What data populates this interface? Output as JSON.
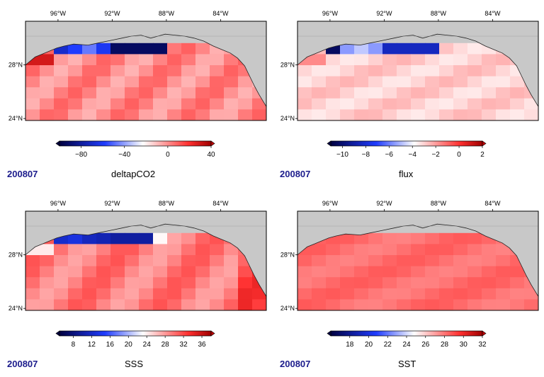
{
  "panels": [
    {
      "id": "deltapco2",
      "date": "200807",
      "variable": "deltapCO2",
      "colorbar": {
        "min": -100,
        "max": 40,
        "ticks": [
          -80,
          -40,
          0,
          40
        ]
      },
      "lon_ticks": [
        "96°W",
        "92°W",
        "88°W",
        "84°W"
      ],
      "lat_ticks": [
        "28°N",
        "24°N"
      ]
    },
    {
      "id": "flux",
      "date": "200807",
      "variable": "flux",
      "colorbar": {
        "min": -11,
        "max": 2,
        "ticks": [
          -10,
          -8,
          -6,
          -4,
          -2,
          0,
          2
        ]
      },
      "lon_ticks": [
        "96°W",
        "92°W",
        "88°W",
        "84°W"
      ],
      "lat_ticks": [
        "28°N",
        "24°N"
      ]
    },
    {
      "id": "sss",
      "date": "200807",
      "variable": "SSS",
      "colorbar": {
        "min": 5,
        "max": 38,
        "ticks": [
          8,
          12,
          16,
          20,
          24,
          28,
          32,
          36
        ]
      },
      "lon_ticks": [
        "96°W",
        "92°W",
        "88°W",
        "84°W"
      ],
      "lat_ticks": [
        "28°N",
        "24°N"
      ]
    },
    {
      "id": "sst",
      "date": "200807",
      "variable": "SST",
      "colorbar": {
        "min": 16,
        "max": 32,
        "ticks": [
          18,
          20,
          22,
          24,
          26,
          28,
          30,
          32
        ]
      },
      "lon_ticks": [
        "96°W",
        "92°W",
        "88°W",
        "84°W"
      ],
      "lat_ticks": [
        "28°N",
        "24°N"
      ]
    }
  ],
  "colors": {
    "land": "#c8c8c8",
    "coast": "#222222",
    "date_text": "#1c1c8c",
    "scale_low": "#000040",
    "scale_mid": "#ffffff",
    "scale_high": "#c00000"
  }
}
